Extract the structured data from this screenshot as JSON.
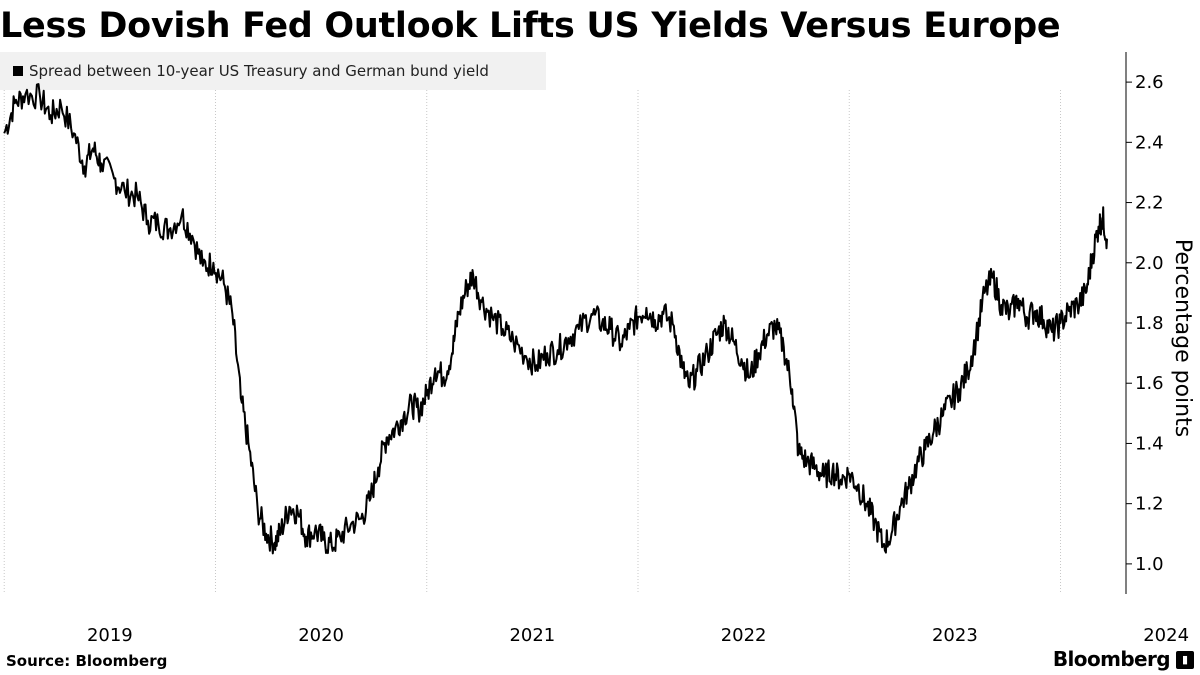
{
  "chart_data": {
    "type": "line",
    "title": "Less Dovish Fed Outlook Lifts US Yields Versus Europe",
    "legend": "Spread between 10-year US Treasury and German bund yield",
    "ylabel": "Percentage points",
    "xlabel": "",
    "ylim": [
      0.9,
      2.7
    ],
    "xlim": [
      2018.98,
      2024.31
    ],
    "y_ticks": [
      1.0,
      1.2,
      1.4,
      1.6,
      1.8,
      2.0,
      2.2,
      2.4,
      2.6
    ],
    "y_tick_labels": [
      "1.0",
      "1.2",
      "1.4",
      "1.6",
      "1.8",
      "2.0",
      "2.2",
      "2.4",
      "2.6"
    ],
    "x_ticks": [
      2019,
      2020,
      2021,
      2022,
      2023,
      2024
    ],
    "x_tick_labels": [
      "2019",
      "2020",
      "2021",
      "2022",
      "2023",
      "2024"
    ],
    "gridlines": "vertical dotted at year boundaries",
    "axis_position": "right",
    "series": [
      {
        "name": "Spread between 10-year US Treasury and German bund yield",
        "color": "#000000",
        "points": [
          [
            2019.0,
            2.43
          ],
          [
            2019.05,
            2.53
          ],
          [
            2019.1,
            2.56
          ],
          [
            2019.17,
            2.55
          ],
          [
            2019.22,
            2.49
          ],
          [
            2019.27,
            2.52
          ],
          [
            2019.33,
            2.43
          ],
          [
            2019.38,
            2.32
          ],
          [
            2019.42,
            2.38
          ],
          [
            2019.46,
            2.33
          ],
          [
            2019.52,
            2.28
          ],
          [
            2019.57,
            2.24
          ],
          [
            2019.63,
            2.22
          ],
          [
            2019.68,
            2.14
          ],
          [
            2019.73,
            2.13
          ],
          [
            2019.78,
            2.11
          ],
          [
            2019.84,
            2.16
          ],
          [
            2019.89,
            2.09
          ],
          [
            2019.94,
            1.99
          ],
          [
            2019.99,
            2.0
          ],
          [
            2020.04,
            1.93
          ],
          [
            2020.08,
            1.83
          ],
          [
            2020.12,
            1.55
          ],
          [
            2020.16,
            1.38
          ],
          [
            2020.2,
            1.18
          ],
          [
            2020.24,
            1.1
          ],
          [
            2020.28,
            1.07
          ],
          [
            2020.31,
            1.11
          ],
          [
            2020.35,
            1.19
          ],
          [
            2020.39,
            1.17
          ],
          [
            2020.43,
            1.09
          ],
          [
            2020.47,
            1.11
          ],
          [
            2020.51,
            1.08
          ],
          [
            2020.55,
            1.06
          ],
          [
            2020.59,
            1.09
          ],
          [
            2020.64,
            1.13
          ],
          [
            2020.69,
            1.15
          ],
          [
            2020.73,
            1.21
          ],
          [
            2020.77,
            1.32
          ],
          [
            2020.81,
            1.42
          ],
          [
            2020.85,
            1.45
          ],
          [
            2020.89,
            1.49
          ],
          [
            2020.93,
            1.53
          ],
          [
            2020.96,
            1.51
          ],
          [
            2021.0,
            1.56
          ],
          [
            2021.04,
            1.65
          ],
          [
            2021.08,
            1.62
          ],
          [
            2021.12,
            1.7
          ],
          [
            2021.15,
            1.83
          ],
          [
            2021.19,
            1.92
          ],
          [
            2021.22,
            1.96
          ],
          [
            2021.26,
            1.87
          ],
          [
            2021.31,
            1.82
          ],
          [
            2021.36,
            1.78
          ],
          [
            2021.41,
            1.74
          ],
          [
            2021.47,
            1.69
          ],
          [
            2021.52,
            1.66
          ],
          [
            2021.57,
            1.7
          ],
          [
            2021.62,
            1.71
          ],
          [
            2021.67,
            1.75
          ],
          [
            2021.72,
            1.78
          ],
          [
            2021.78,
            1.83
          ],
          [
            2021.83,
            1.8
          ],
          [
            2021.87,
            1.78
          ],
          [
            2021.92,
            1.73
          ],
          [
            2021.96,
            1.78
          ],
          [
            2022.0,
            1.82
          ],
          [
            2022.04,
            1.85
          ],
          [
            2022.08,
            1.81
          ],
          [
            2022.12,
            1.83
          ],
          [
            2022.17,
            1.79
          ],
          [
            2022.21,
            1.65
          ],
          [
            2022.24,
            1.59
          ],
          [
            2022.28,
            1.64
          ],
          [
            2022.33,
            1.7
          ],
          [
            2022.37,
            1.76
          ],
          [
            2022.41,
            1.8
          ],
          [
            2022.45,
            1.74
          ],
          [
            2022.49,
            1.68
          ],
          [
            2022.53,
            1.62
          ],
          [
            2022.57,
            1.7
          ],
          [
            2022.61,
            1.76
          ],
          [
            2022.65,
            1.79
          ],
          [
            2022.69,
            1.72
          ],
          [
            2022.73,
            1.58
          ],
          [
            2022.76,
            1.37
          ],
          [
            2022.8,
            1.34
          ],
          [
            2022.84,
            1.32
          ],
          [
            2022.88,
            1.29
          ],
          [
            2022.92,
            1.31
          ],
          [
            2022.96,
            1.28
          ],
          [
            2023.0,
            1.3
          ],
          [
            2023.04,
            1.26
          ],
          [
            2023.08,
            1.2
          ],
          [
            2023.12,
            1.14
          ],
          [
            2023.16,
            1.06
          ],
          [
            2023.2,
            1.1
          ],
          [
            2023.24,
            1.19
          ],
          [
            2023.28,
            1.25
          ],
          [
            2023.32,
            1.33
          ],
          [
            2023.36,
            1.38
          ],
          [
            2023.4,
            1.44
          ],
          [
            2023.44,
            1.49
          ],
          [
            2023.48,
            1.54
          ],
          [
            2023.52,
            1.58
          ],
          [
            2023.56,
            1.64
          ],
          [
            2023.6,
            1.75
          ],
          [
            2023.64,
            1.9
          ],
          [
            2023.68,
            1.95
          ],
          [
            2023.72,
            1.86
          ],
          [
            2023.76,
            1.83
          ],
          [
            2023.8,
            1.88
          ],
          [
            2023.84,
            1.82
          ],
          [
            2023.88,
            1.84
          ],
          [
            2023.92,
            1.81
          ],
          [
            2023.96,
            1.77
          ],
          [
            2024.0,
            1.8
          ],
          [
            2024.04,
            1.84
          ],
          [
            2024.08,
            1.86
          ],
          [
            2024.12,
            1.9
          ],
          [
            2024.15,
            2.02
          ],
          [
            2024.18,
            2.12
          ],
          [
            2024.2,
            2.15
          ],
          [
            2024.22,
            2.08
          ]
        ]
      }
    ]
  },
  "footer": {
    "source": "Source: Bloomberg",
    "brand": "Bloomberg"
  }
}
